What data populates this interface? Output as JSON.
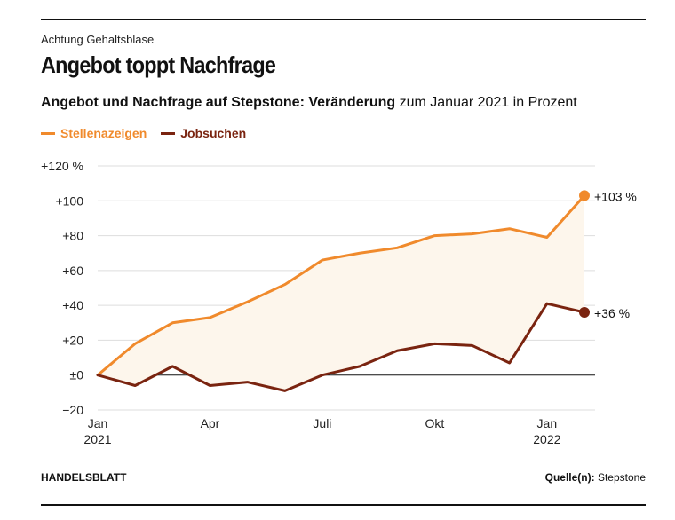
{
  "header": {
    "kicker": "Achtung Gehaltsblase",
    "title": "Angebot toppt Nachfrage",
    "subtitle_bold": "Angebot und Nachfrage auf Stepstone: Veränderung",
    "subtitle_rest": " zum Januar 2021 in Prozent"
  },
  "footer": {
    "brand": "HANDELSBLATT",
    "source_label": "Quelle(n):",
    "source_value": " Stepstone"
  },
  "colors": {
    "stellen": "#f08a2c",
    "jobsuchen": "#7a2410",
    "fill": "#fdf6ec"
  },
  "chart_data": {
    "type": "line",
    "ylim": [
      -20,
      120
    ],
    "yticks": [
      {
        "value": 120,
        "label": "+120 %"
      },
      {
        "value": 100,
        "label": "+100"
      },
      {
        "value": 80,
        "label": "+80"
      },
      {
        "value": 60,
        "label": "+60"
      },
      {
        "value": 40,
        "label": "+40"
      },
      {
        "value": 20,
        "label": "+20"
      },
      {
        "value": 0,
        "label": "±0"
      },
      {
        "value": -20,
        "label": "−20"
      }
    ],
    "x": [
      "2021-01",
      "2021-02",
      "2021-03",
      "2021-04",
      "2021-05",
      "2021-06",
      "2021-07",
      "2021-08",
      "2021-09",
      "2021-10",
      "2021-11",
      "2021-12",
      "2022-01",
      "2022-02"
    ],
    "xticks": [
      {
        "x": "2021-01",
        "line1": "Jan",
        "line2": "2021"
      },
      {
        "x": "2021-04",
        "line1": "Apr",
        "line2": ""
      },
      {
        "x": "2021-07",
        "line1": "Juli",
        "line2": ""
      },
      {
        "x": "2021-10",
        "line1": "Okt",
        "line2": ""
      },
      {
        "x": "2022-01",
        "line1": "Jan",
        "line2": "2022"
      }
    ],
    "series": [
      {
        "name": "Stellenazeigen",
        "color": "#f08a2c",
        "values": [
          0,
          18,
          30,
          33,
          42,
          52,
          66,
          70,
          73,
          80,
          81,
          84,
          79,
          103
        ],
        "end_label": "+103 %"
      },
      {
        "name": "Jobsuchen",
        "color": "#7a2410",
        "values": [
          0,
          -6,
          5,
          -6,
          -4,
          -9,
          0,
          5,
          14,
          18,
          17,
          7,
          41,
          36
        ],
        "end_label": "+36 %"
      }
    ],
    "grid": true
  }
}
